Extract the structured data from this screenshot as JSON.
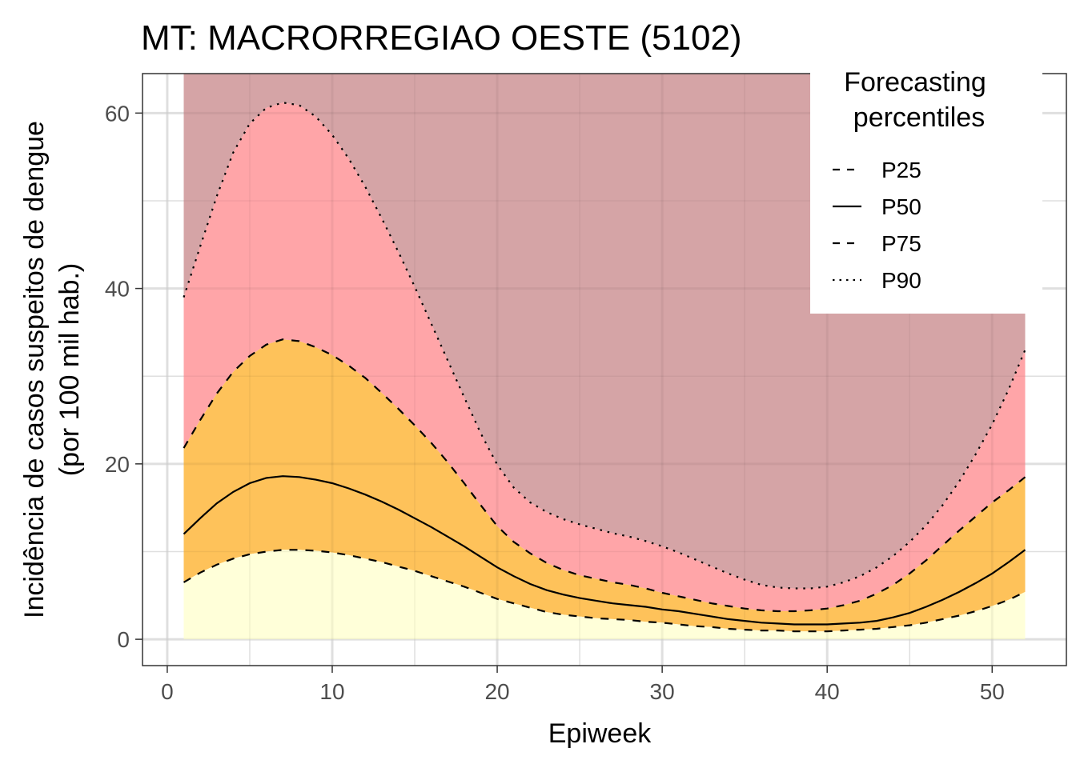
{
  "chart_data": {
    "type": "area",
    "title": "MT: MACRORREGIAO OESTE (5102)",
    "xlabel": "Epiweek",
    "ylabel_line1": "Incidência de casos suspeitos de dengue",
    "ylabel_line2": "(por 100 mil hab.)",
    "xlim": [
      -1.5,
      54.5
    ],
    "ylim": [
      -3,
      64.5
    ],
    "x_ticks": [
      0,
      10,
      20,
      30,
      40,
      50
    ],
    "x_tick_labels": [
      "0",
      "10",
      "20",
      "30",
      "40",
      "50"
    ],
    "y_ticks": [
      0,
      20,
      40,
      60
    ],
    "y_tick_labels": [
      "0",
      "20",
      "40",
      "60"
    ],
    "grid": true,
    "band_colors": {
      "below_p25": "#ffffd9",
      "p25_p75": "#fec25a",
      "p75_p90": "#ffa5a8",
      "above_p90": "#d5a4a6"
    },
    "x": [
      1,
      2,
      3,
      4,
      5,
      6,
      7,
      8,
      9,
      10,
      11,
      12,
      13,
      14,
      15,
      16,
      17,
      18,
      19,
      20,
      21,
      22,
      23,
      24,
      25,
      26,
      27,
      28,
      29,
      30,
      31,
      32,
      33,
      34,
      35,
      36,
      37,
      38,
      39,
      40,
      41,
      42,
      43,
      44,
      45,
      46,
      47,
      48,
      49,
      50,
      51,
      52
    ],
    "series": [
      {
        "name": "P25",
        "linestyle": "dashed",
        "values": [
          6.5,
          7.6,
          8.5,
          9.2,
          9.7,
          10.0,
          10.2,
          10.2,
          10.1,
          9.9,
          9.6,
          9.2,
          8.8,
          8.3,
          7.8,
          7.2,
          6.6,
          6.0,
          5.3,
          4.6,
          4.1,
          3.6,
          3.1,
          2.8,
          2.6,
          2.4,
          2.3,
          2.2,
          2.0,
          1.9,
          1.7,
          1.5,
          1.4,
          1.2,
          1.1,
          1.0,
          1.0,
          0.9,
          0.9,
          0.9,
          1.0,
          1.1,
          1.2,
          1.4,
          1.6,
          1.9,
          2.3,
          2.7,
          3.2,
          3.8,
          4.5,
          5.4
        ]
      },
      {
        "name": "P50",
        "linestyle": "solid",
        "values": [
          12.0,
          13.8,
          15.5,
          16.8,
          17.8,
          18.4,
          18.6,
          18.5,
          18.2,
          17.8,
          17.2,
          16.5,
          15.7,
          14.8,
          13.8,
          12.8,
          11.7,
          10.6,
          9.4,
          8.2,
          7.2,
          6.3,
          5.6,
          5.1,
          4.7,
          4.4,
          4.1,
          3.9,
          3.7,
          3.4,
          3.2,
          2.9,
          2.6,
          2.3,
          2.1,
          1.9,
          1.8,
          1.7,
          1.7,
          1.7,
          1.8,
          1.9,
          2.1,
          2.5,
          3.0,
          3.7,
          4.5,
          5.4,
          6.4,
          7.5,
          8.8,
          10.2
        ]
      },
      {
        "name": "P75",
        "linestyle": "dashed",
        "values": [
          21.8,
          25.0,
          28.0,
          30.5,
          32.3,
          33.6,
          34.2,
          34.0,
          33.3,
          32.4,
          31.2,
          29.8,
          28.1,
          26.3,
          24.4,
          22.4,
          20.2,
          17.8,
          15.3,
          12.9,
          11.1,
          9.8,
          8.7,
          7.9,
          7.3,
          6.9,
          6.5,
          6.2,
          5.8,
          5.3,
          4.9,
          4.5,
          4.1,
          3.8,
          3.5,
          3.3,
          3.2,
          3.2,
          3.3,
          3.5,
          3.9,
          4.4,
          5.2,
          6.2,
          7.5,
          9.0,
          10.7,
          12.4,
          14.0,
          15.6,
          17.0,
          18.5
        ]
      },
      {
        "name": "P90",
        "linestyle": "dotted",
        "values": [
          39.0,
          44.8,
          50.5,
          55.5,
          58.8,
          60.6,
          61.2,
          60.9,
          59.6,
          57.5,
          54.8,
          51.6,
          48.0,
          44.2,
          40.2,
          36.0,
          31.8,
          27.6,
          23.5,
          19.9,
          17.3,
          15.6,
          14.5,
          13.7,
          13.1,
          12.6,
          12.1,
          11.7,
          11.2,
          10.6,
          9.9,
          9.1,
          8.3,
          7.5,
          6.8,
          6.2,
          5.9,
          5.8,
          5.8,
          6.0,
          6.5,
          7.2,
          8.2,
          9.5,
          11.1,
          13.0,
          15.3,
          18.0,
          21.1,
          24.5,
          28.5,
          33.0
        ]
      }
    ],
    "legend": {
      "title_line1": "Forecasting",
      "title_line2": "percentiles",
      "position": "top-right",
      "entries": [
        {
          "label": "P25",
          "linestyle": "dashed"
        },
        {
          "label": "P50",
          "linestyle": "solid"
        },
        {
          "label": "P75",
          "linestyle": "dashed"
        },
        {
          "label": "P90",
          "linestyle": "dotted"
        }
      ]
    }
  }
}
